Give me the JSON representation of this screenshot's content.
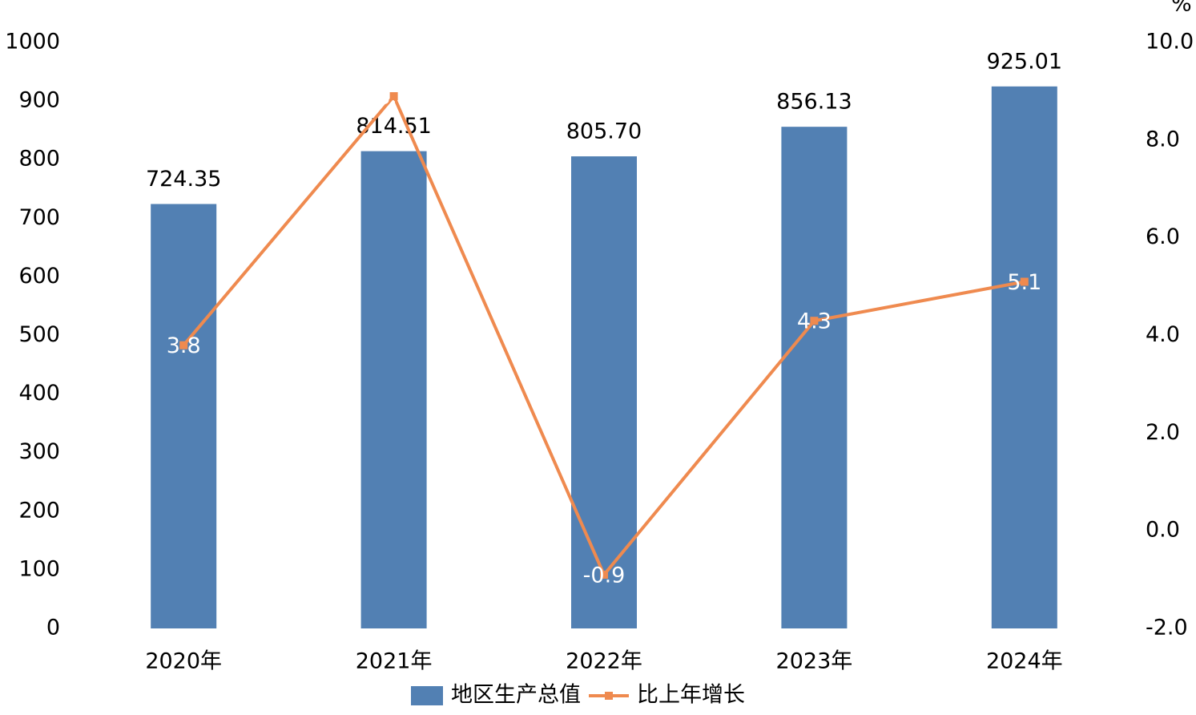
{
  "chart_data": {
    "type": "bar",
    "categories": [
      "2020年",
      "2021年",
      "2022年",
      "2023年",
      "2024年"
    ],
    "y2_label": "%",
    "series": [
      {
        "name": "地区生产总值",
        "type": "bar",
        "color": "#5280b3",
        "values": [
          724.35,
          814.51,
          805.7,
          856.13,
          925.01
        ],
        "value_labels": [
          "724.35",
          "814.51",
          "805.70",
          "856.13",
          "925.01"
        ]
      },
      {
        "name": "比上年增长",
        "type": "line",
        "axis": "y2",
        "color": "#ef8a4f",
        "values": [
          3.8,
          8.9,
          -0.9,
          4.3,
          5.1
        ]
      }
    ],
    "ylim": [
      0,
      1000
    ],
    "yticks": [
      0,
      100,
      200,
      300,
      400,
      500,
      600,
      700,
      800,
      900,
      1000
    ],
    "y2lim": [
      -2,
      10
    ],
    "y2ticks": [
      {
        "value": -2,
        "label": "-2.0"
      },
      {
        "value": 0,
        "label": "0.0"
      },
      {
        "value": 2,
        "label": "2.0"
      },
      {
        "value": 4,
        "label": "4.0"
      },
      {
        "value": 6,
        "label": "6.0"
      },
      {
        "value": 8,
        "label": "8.0"
      },
      {
        "value": 10,
        "label": "10.0"
      }
    ],
    "legend": "bottom"
  }
}
